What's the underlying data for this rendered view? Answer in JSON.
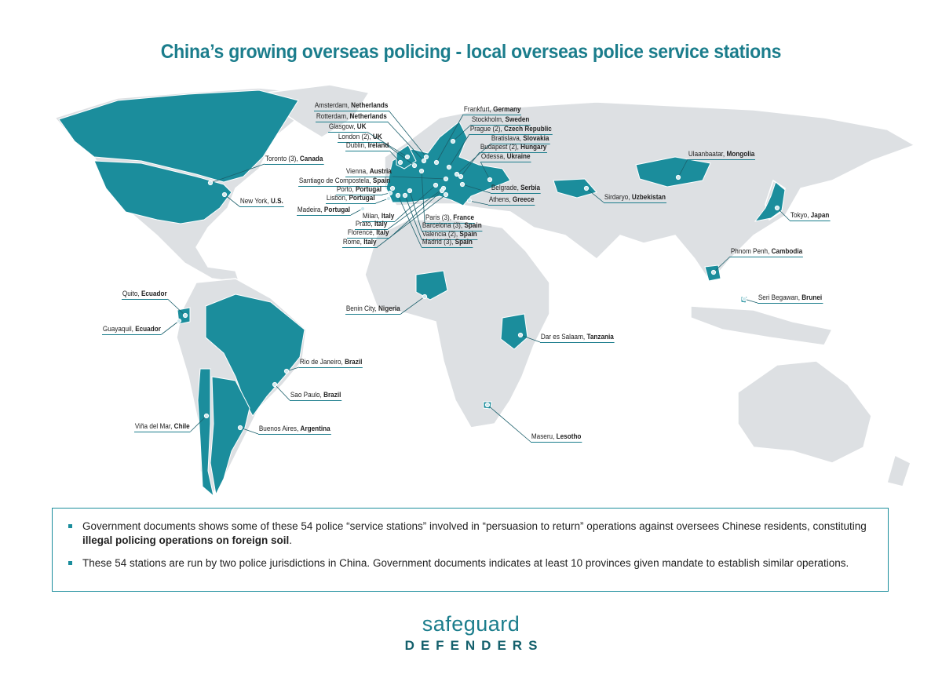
{
  "title": "China’s growing overseas policing - local overseas police service stations",
  "colors": {
    "highlight": "#1b8d9c",
    "land": "#dde0e3",
    "title": "#1b7d8c"
  },
  "stations": [
    {
      "city": "Amsterdam,",
      "country": "Netherlands"
    },
    {
      "city": "Rotterdam,",
      "country": "Netherlands"
    },
    {
      "city": "Glasgow,",
      "country": "UK"
    },
    {
      "city": "London (2),",
      "country": "UK"
    },
    {
      "city": "Dublin,",
      "country": "Ireland"
    },
    {
      "city": "Toronto (3),",
      "country": "Canada"
    },
    {
      "city": "Vienna,",
      "country": "Austria"
    },
    {
      "city": "Santiago de Compostela,",
      "country": "Spain"
    },
    {
      "city": "Porto,",
      "country": "Portugal"
    },
    {
      "city": "Lisbon,",
      "country": "Portugal"
    },
    {
      "city": "New York,",
      "country": "U.S."
    },
    {
      "city": "Madeira,",
      "country": "Portugal"
    },
    {
      "city": "Milan,",
      "country": "Italy"
    },
    {
      "city": "Prato,",
      "country": "Italy"
    },
    {
      "city": "Florence,",
      "country": "Italy"
    },
    {
      "city": "Rome,",
      "country": "Italy"
    },
    {
      "city": "Frankfurt,",
      "country": "Germany"
    },
    {
      "city": "Stockholm,",
      "country": "Sweden"
    },
    {
      "city": "Prague (2),",
      "country": "Czech Republic"
    },
    {
      "city": "Bratislava,",
      "country": "Slovakia"
    },
    {
      "city": "Budapest (2),",
      "country": "Hungary"
    },
    {
      "city": "Odessa,",
      "country": "Ukraine"
    },
    {
      "city": "Belgrade,",
      "country": "Serbia"
    },
    {
      "city": "Athens,",
      "country": "Greece"
    },
    {
      "city": "Paris (3),",
      "country": "France"
    },
    {
      "city": "Barcelona (3),",
      "country": "Spain"
    },
    {
      "city": "Valencia (2),",
      "country": "Spain"
    },
    {
      "city": "Madrid (3),",
      "country": "Spain"
    },
    {
      "city": "Ulaanbaatar,",
      "country": "Mongolia"
    },
    {
      "city": "Sirdaryo,",
      "country": "Uzbekistan"
    },
    {
      "city": "Tokyo,",
      "country": "Japan"
    },
    {
      "city": "Phnom Penh,",
      "country": "Cambodia"
    },
    {
      "city": "Seri Begawan,",
      "country": "Brunei"
    },
    {
      "city": "Benin City,",
      "country": "Nigeria"
    },
    {
      "city": "Dar es Salaam,",
      "country": "Tanzania"
    },
    {
      "city": "Maseru,",
      "country": "Lesotho"
    },
    {
      "city": "Quito,",
      "country": "Ecuador"
    },
    {
      "city": "Guayaquil,",
      "country": "Ecuador"
    },
    {
      "city": "Rio de Janeiro,",
      "country": "Brazil"
    },
    {
      "city": "Sao Paulo,",
      "country": "Brazil"
    },
    {
      "city": "Viña del Mar,",
      "country": "Chile"
    },
    {
      "city": "Buenos Aires,",
      "country": "Argentina"
    }
  ],
  "notes": [
    {
      "text": "Government documents shows some of these 54 police “service stations” involved in “persuasion to return” operations against oversees Chinese residents, constituting ",
      "bold": "illegal policing operations on foreign soil",
      "end": "."
    },
    {
      "text": "These 54 stations are run by two police jurisdictions in China. Government documents indicates at least 10 provinces given mandate to establish similar operations.",
      "bold": "",
      "end": ""
    }
  ],
  "logo": {
    "top": "safeguard",
    "bottom": "DEFENDERS"
  }
}
